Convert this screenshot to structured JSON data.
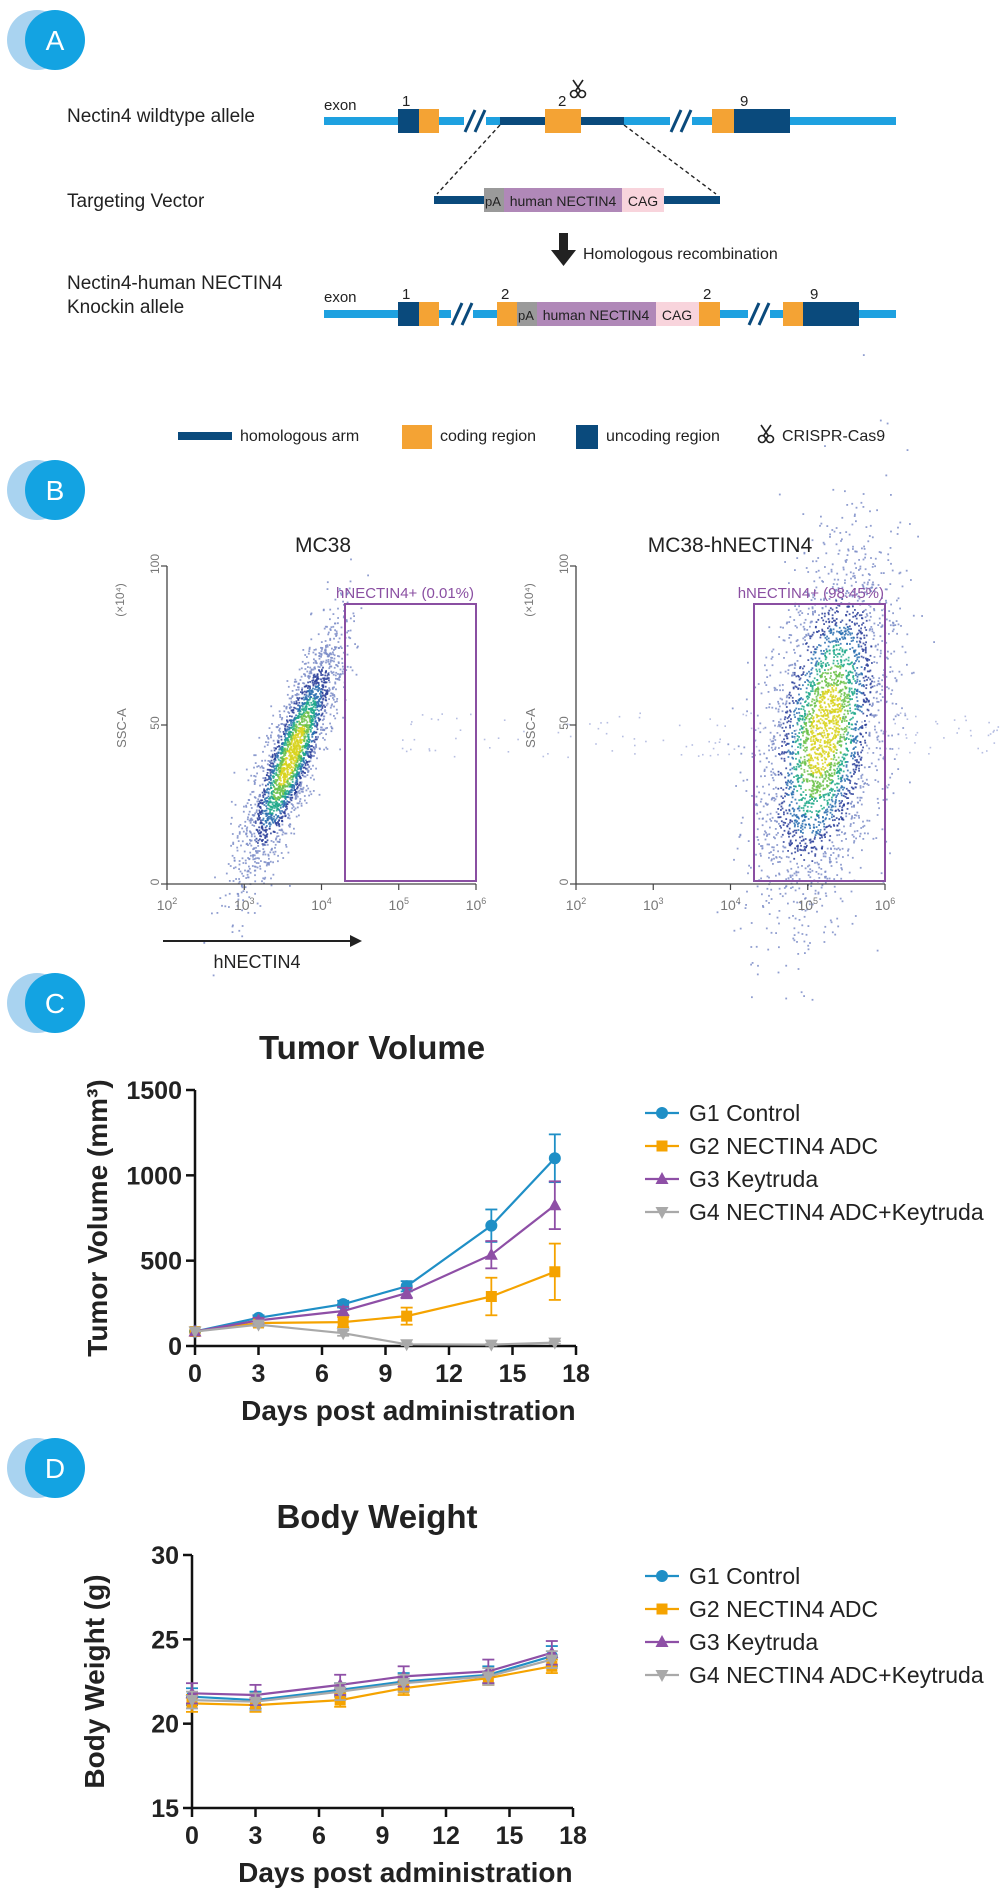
{
  "panels": {
    "a": {
      "letter": "A"
    },
    "b": {
      "letter": "B"
    },
    "c": {
      "letter": "C"
    },
    "d": {
      "letter": "D"
    }
  },
  "colors": {
    "light_blue_line": "#1ea1e0",
    "dark_blue": "#0a4a7c",
    "orange": "#f4a334",
    "badge_blue": "#13a3e2",
    "badge_light": "#a9d3f0",
    "purple_text": "#8a4fa2",
    "g1": "#1f8fc6",
    "g2": "#f5a300",
    "g3": "#8e4fa6",
    "g4": "#a9a9a9"
  },
  "schematic": {
    "wildtype_label": "Nectin4 wildtype allele",
    "vector_label": "Targeting Vector",
    "knockin_label_1": "Nectin4-human NECTIN4",
    "knockin_label_2": "Knockin allele",
    "exon_word": "exon",
    "exon_1": "1",
    "exon_2": "2",
    "exon_9": "9",
    "pa": "pA",
    "human_nectin4": "human NECTIN4",
    "cag": "CAG",
    "recombination": "Homologous recombination",
    "legend": {
      "homologous_arm": "homologous arm",
      "coding_region": "coding region",
      "uncoding_region": "uncoding region",
      "crispr": "CRISPR-Cas9"
    }
  },
  "flow": {
    "left_title": "MC38",
    "right_title": "MC38-hNECTIN4",
    "left_gate": "hNECTIN4+ (0.01%)",
    "right_gate": "hNECTIN4+ (98.45%)",
    "y_axis_label": "SSC-A",
    "y_multiplier": "(×10⁴)",
    "y_ticks": [
      "0",
      "50",
      "100"
    ],
    "x_ticks_base": "10",
    "x_ticks_exp": [
      "2",
      "3",
      "4",
      "5",
      "6"
    ],
    "x_arrow_label": "hNECTIN4"
  },
  "chart_data": [
    {
      "type": "line",
      "title": "Tumor Volume",
      "xlabel": "Days post administration",
      "ylabel": "Tumor Volume (mm³)",
      "xlim": [
        0,
        18
      ],
      "ylim": [
        0,
        1500
      ],
      "xticks": [
        "0",
        "3",
        "6",
        "9",
        "12",
        "15",
        "18"
      ],
      "yticks": [
        "0",
        "500",
        "1000",
        "1500"
      ],
      "legend_position": "right",
      "series": [
        {
          "name": "G1 Control",
          "marker": "circle",
          "x": [
            0,
            3,
            7,
            10,
            14,
            17
          ],
          "values": [
            85,
            165,
            245,
            350,
            705,
            1100
          ],
          "errors": [
            0,
            15,
            20,
            30,
            95,
            140
          ]
        },
        {
          "name": "G2 NECTIN4 ADC",
          "marker": "square",
          "x": [
            0,
            3,
            7,
            10,
            14,
            17
          ],
          "values": [
            85,
            135,
            140,
            175,
            290,
            435
          ],
          "errors": [
            0,
            15,
            30,
            50,
            110,
            165
          ]
        },
        {
          "name": "G3 Keytruda",
          "marker": "triangle-up",
          "x": [
            0,
            3,
            7,
            10,
            14,
            17
          ],
          "values": [
            85,
            150,
            205,
            310,
            535,
            825
          ],
          "errors": [
            0,
            15,
            25,
            30,
            80,
            140
          ]
        },
        {
          "name": "G4 NECTIN4 ADC+Keytruda",
          "marker": "triangle-down",
          "x": [
            0,
            3,
            7,
            10,
            14,
            17
          ],
          "values": [
            85,
            125,
            75,
            10,
            8,
            20
          ],
          "errors": [
            0,
            10,
            15,
            5,
            5,
            8
          ]
        }
      ]
    },
    {
      "type": "line",
      "title": "Body Weight",
      "xlabel": "Days post administration",
      "ylabel": "Body Weight (g)",
      "xlim": [
        0,
        18
      ],
      "ylim": [
        15,
        30
      ],
      "xticks": [
        "0",
        "3",
        "6",
        "9",
        "12",
        "15",
        "18"
      ],
      "yticks": [
        "15",
        "20",
        "25",
        "30"
      ],
      "legend_position": "right",
      "series": [
        {
          "name": "G1 Control",
          "marker": "circle",
          "x": [
            0,
            3,
            7,
            10,
            14,
            17
          ],
          "values": [
            21.6,
            21.4,
            22.0,
            22.5,
            22.9,
            24.0
          ],
          "errors": [
            0.5,
            0.5,
            0.4,
            0.5,
            0.5,
            0.6
          ]
        },
        {
          "name": "G2 NECTIN4 ADC",
          "marker": "square",
          "x": [
            0,
            3,
            7,
            10,
            14,
            17
          ],
          "values": [
            21.2,
            21.1,
            21.4,
            22.1,
            22.7,
            23.4
          ],
          "errors": [
            0.5,
            0.4,
            0.4,
            0.4,
            0.4,
            0.4
          ]
        },
        {
          "name": "G3 Keytruda",
          "marker": "triangle-up",
          "x": [
            0,
            3,
            7,
            10,
            14,
            17
          ],
          "values": [
            21.8,
            21.7,
            22.3,
            22.8,
            23.1,
            24.2
          ],
          "errors": [
            0.6,
            0.6,
            0.6,
            0.6,
            0.7,
            0.7
          ]
        },
        {
          "name": "G4 NECTIN4 ADC+Keytruda",
          "marker": "triangle-down",
          "x": [
            0,
            3,
            7,
            10,
            14,
            17
          ],
          "values": [
            21.4,
            21.3,
            21.9,
            22.4,
            22.8,
            23.8
          ],
          "errors": [
            0.5,
            0.5,
            0.5,
            0.5,
            0.5,
            0.5
          ]
        }
      ]
    }
  ]
}
